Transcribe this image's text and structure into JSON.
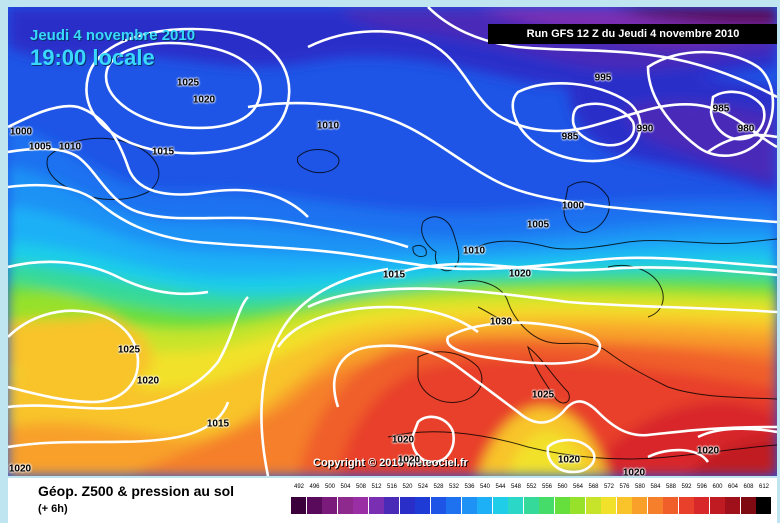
{
  "header": {
    "date": "Jeudi 4 novembre 2010",
    "time": "19:00 locale",
    "run": "Run GFS 12 Z du Jeudi 4 novembre 2010"
  },
  "footer": {
    "copyright": "Copyright © 2010 Meteociel.fr",
    "legend_title": "Géop. Z500 & pression au sol",
    "legend_sub": "(+ 6h)"
  },
  "isobar_labels": [
    "1025",
    "1020",
    "1000",
    "1005",
    "1010",
    "1015",
    "1010",
    "995",
    "985",
    "990",
    "985",
    "980",
    "1000",
    "1005",
    "1010",
    "1020",
    "1015",
    "1030",
    "1025",
    "1020",
    "1020",
    "1020",
    "1020",
    "1020",
    "1015",
    "1025",
    "1020",
    "1020",
    "1015",
    "1020"
  ],
  "scale": {
    "labels": [
      "492",
      "496",
      "500",
      "504",
      "508",
      "512",
      "516",
      "520",
      "524",
      "528",
      "532",
      "536",
      "540",
      "544",
      "548",
      "552",
      "556",
      "560",
      "564",
      "568",
      "572",
      "576",
      "580",
      "584",
      "588",
      "592",
      "596",
      "600",
      "604",
      "608",
      "612"
    ],
    "colors": [
      "#3b003b",
      "#5a0a5a",
      "#7a1a7a",
      "#8e2a8e",
      "#9a2fa5",
      "#7a2fb3",
      "#4a2bb8",
      "#2a2ec9",
      "#1e3bd6",
      "#1e55e6",
      "#1e72f0",
      "#1f92f5",
      "#1eb0f6",
      "#1fcde8",
      "#2bd8c8",
      "#35d99a",
      "#45dc6a",
      "#66de3c",
      "#98e12a",
      "#c7e42a",
      "#f2e12a",
      "#f8c429",
      "#f8a02a",
      "#f57f2a",
      "#f05f2a",
      "#e8402a",
      "#d8282a",
      "#c01a22",
      "#a0101a",
      "#800a12",
      "#000000"
    ]
  }
}
